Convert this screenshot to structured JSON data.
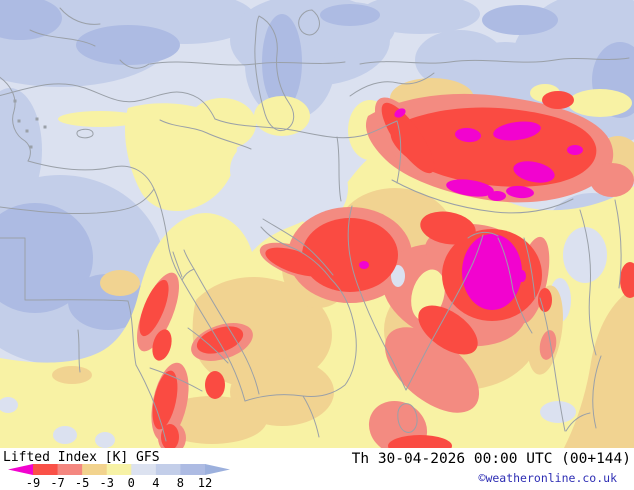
{
  "legend": {
    "title": "Lifted Index [K] GFS",
    "boundary_labels": [
      "-9",
      "-7",
      "-5",
      "-3",
      "0",
      "4",
      "8",
      "12"
    ],
    "segment_colors": [
      "#fa5148",
      "#f48780",
      "#f2d38e",
      "#f7f2a6",
      "#dce2f0",
      "#c3cee9",
      "#adbbe3"
    ],
    "left_arrow_color": "#f203cf",
    "right_arrow_color": "#9cb0dd"
  },
  "footer": {
    "timestamp": "Th 30-04-2026 00:00 UTC (00+144)",
    "copyright": "©weatheronline.co.uk"
  },
  "map_palette": {
    "magenta": "#f203cf",
    "red": "#fa4b42",
    "salmon": "#f38b81",
    "tan": "#f1d391",
    "yellow": "#f8f2a4",
    "pale": "#dbe1f0",
    "periwinkle_light": "#c3cee9",
    "periwinkle_medium": "#adbbe3",
    "border": "#9aa0a8"
  }
}
